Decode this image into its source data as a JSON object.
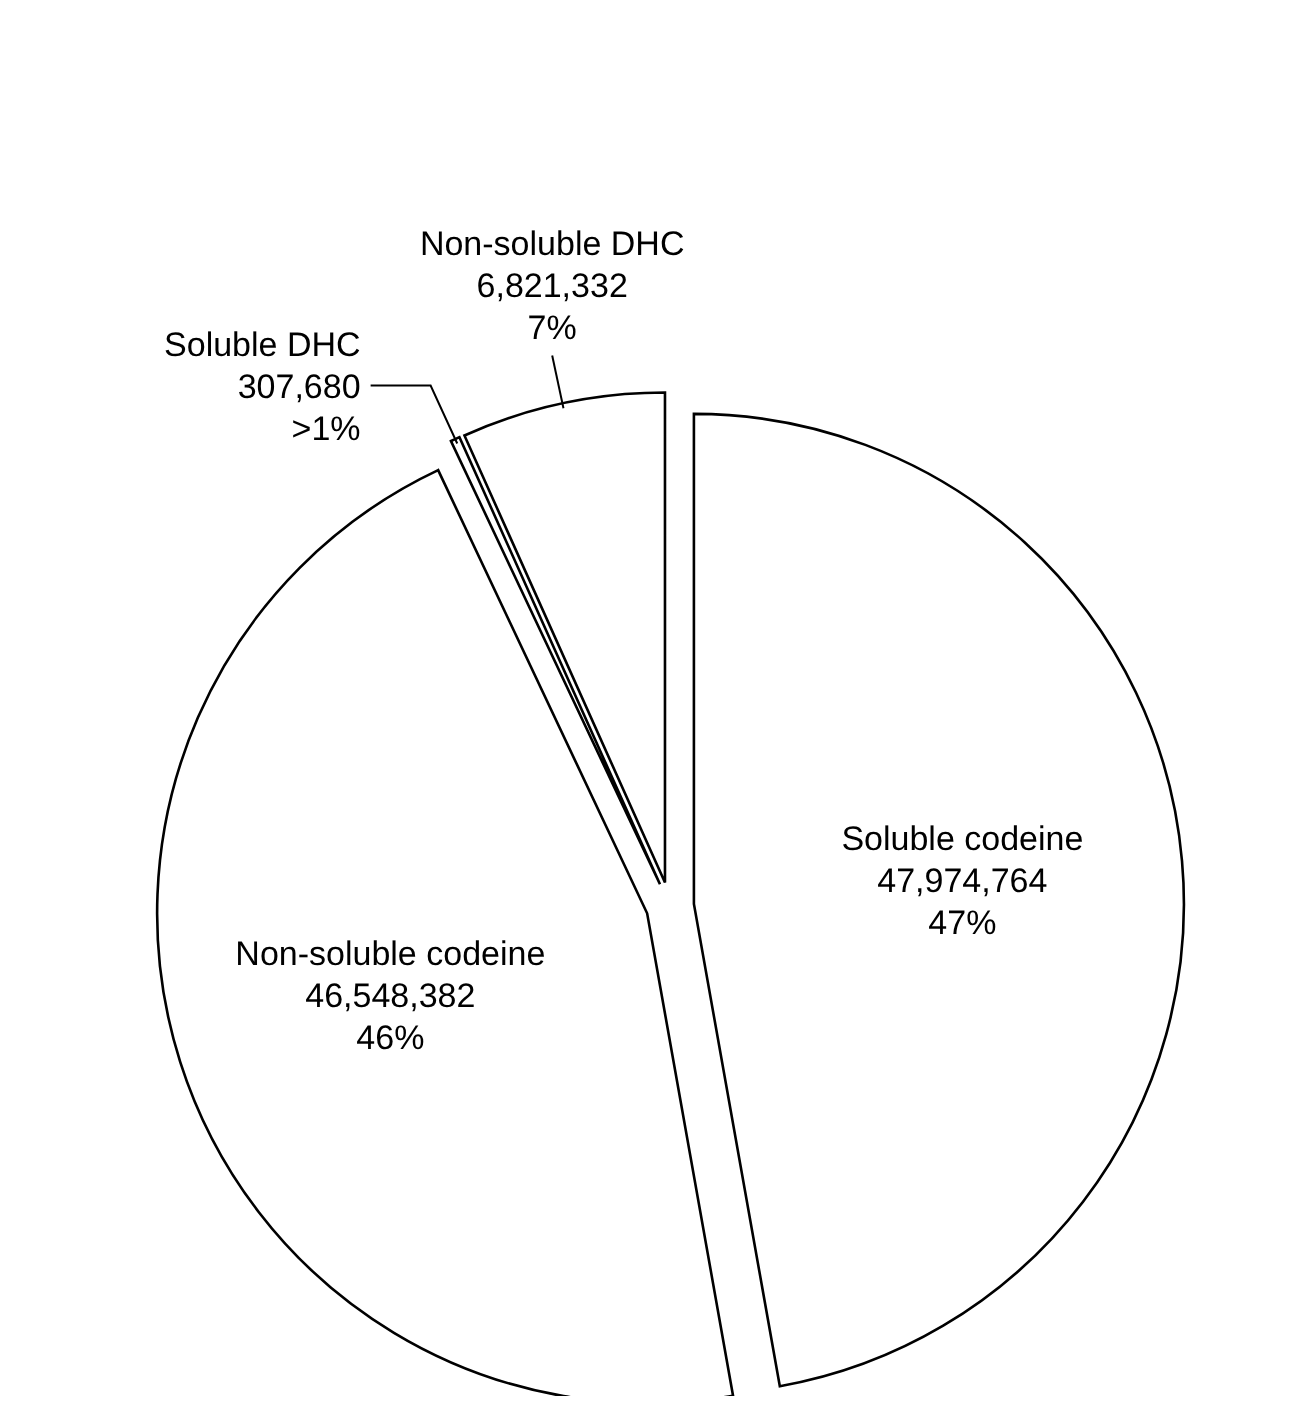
{
  "chart_data": {
    "type": "pie",
    "categories": [
      "Soluble codeine",
      "Non-soluble codeine",
      "Soluble DHC",
      "Non-soluble DHC"
    ],
    "values": [
      47974764,
      46548382,
      307680,
      6821332
    ],
    "value_labels": [
      "47,974,764\n47%",
      "46,548,382\n46%",
      "307,680\n>1%",
      "6,821,332\n7%"
    ],
    "colors": [
      "#ffffff",
      "#ffffff",
      "#ffffff",
      "#ffffff"
    ],
    "legend": false
  }
}
